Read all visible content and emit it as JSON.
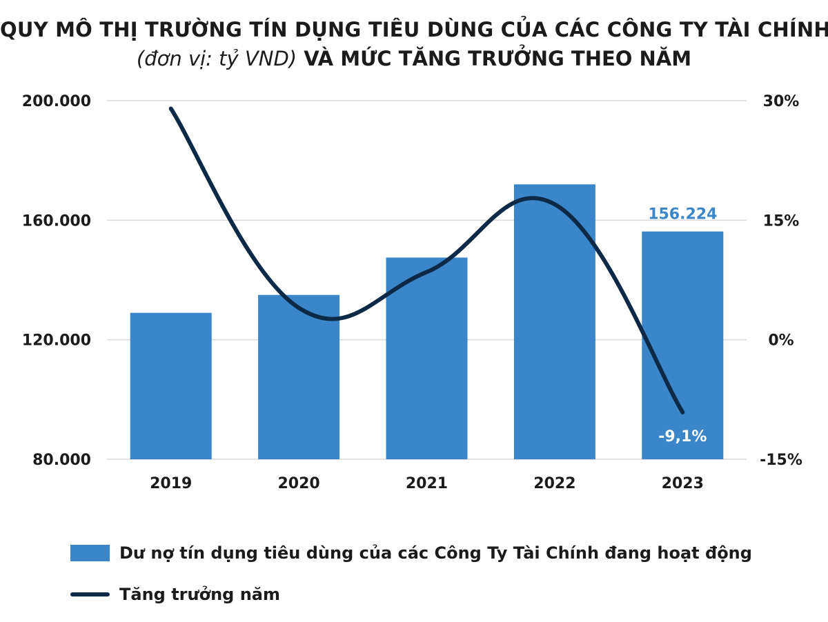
{
  "title": {
    "line1": "QUY MÔ THỊ TRƯỜNG TÍN DỤNG TIÊU DÙNG CỦA CÁC CÔNG TY TÀI CHÍNH",
    "unit": "(đơn vị: tỷ VND)",
    "line2_rest": " VÀ MỨC TĂNG TRƯỞNG THEO NĂM"
  },
  "colors": {
    "bar": "#3a86c8",
    "line": "#0c2a47",
    "grid": "#d9d9d9",
    "highlight_label": "#3a86c8",
    "growth_label": "#ffffff"
  },
  "chart_data": {
    "type": "bar",
    "categories": [
      "2019",
      "2020",
      "2021",
      "2022",
      "2023"
    ],
    "series": [
      {
        "name": "Dư nợ tín dụng tiêu dùng của các Công Ty Tài Chính đang hoạt động",
        "type": "bar",
        "axis": "left",
        "values": [
          129000,
          135000,
          147500,
          172000,
          156224
        ]
      },
      {
        "name": "Tăng trưởng năm",
        "type": "line",
        "axis": "right",
        "smooth": true,
        "values": [
          29,
          4,
          8.5,
          17,
          -9.1
        ]
      }
    ],
    "y_left": {
      "ylim": [
        80000,
        200000
      ],
      "ticks": [
        80000,
        120000,
        160000,
        200000
      ],
      "tick_labels": [
        "80.000",
        "120.000",
        "160.000",
        "200.000"
      ]
    },
    "y_right": {
      "ylim": [
        -15,
        30
      ],
      "ticks": [
        -15,
        0,
        15,
        30
      ],
      "tick_labels": [
        "-15%",
        "0%",
        "15%",
        "30%"
      ]
    },
    "data_labels": [
      {
        "series": 0,
        "index": 4,
        "text": "156.224"
      },
      {
        "series": 1,
        "index": 4,
        "text": "-9,1%"
      }
    ],
    "grid": true,
    "legend_position": "bottom-left"
  },
  "legend": {
    "bar_label": "Dư nợ tín dụng tiêu dùng của các Công Ty Tài Chính đang hoạt động",
    "line_label": "Tăng trưởng năm"
  }
}
